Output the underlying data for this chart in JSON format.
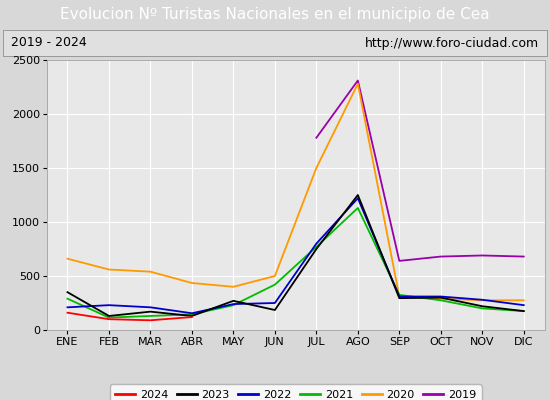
{
  "title": "Evolucion Nº Turistas Nacionales en el municipio de Cea",
  "subtitle_left": "2019 - 2024",
  "subtitle_right": "http://www.foro-ciudad.com",
  "months": [
    "ENE",
    "FEB",
    "MAR",
    "ABR",
    "MAY",
    "JUN",
    "JUL",
    "AGO",
    "SEP",
    "OCT",
    "NOV",
    "DIC"
  ],
  "ylim": [
    0,
    2500
  ],
  "yticks": [
    0,
    500,
    1000,
    1500,
    2000,
    2500
  ],
  "series": {
    "2024": {
      "color": "#ff0000",
      "values": [
        160,
        100,
        90,
        120,
        null,
        null,
        null,
        null,
        null,
        null,
        null,
        null
      ]
    },
    "2023": {
      "color": "#000000",
      "values": [
        350,
        130,
        170,
        130,
        270,
        185,
        750,
        1250,
        295,
        300,
        220,
        175
      ]
    },
    "2022": {
      "color": "#0000cc",
      "values": [
        210,
        230,
        210,
        155,
        240,
        250,
        800,
        1220,
        310,
        310,
        280,
        230
      ]
    },
    "2021": {
      "color": "#00bb00",
      "values": [
        290,
        115,
        130,
        145,
        230,
        420,
        770,
        1130,
        325,
        275,
        200,
        175
      ]
    },
    "2020": {
      "color": "#ff9900",
      "values": [
        660,
        560,
        540,
        435,
        400,
        500,
        1500,
        2280,
        310,
        290,
        275,
        275
      ]
    },
    "2019": {
      "color": "#9900aa",
      "values": [
        null,
        null,
        null,
        null,
        null,
        null,
        1780,
        2310,
        640,
        680,
        690,
        680
      ]
    }
  },
  "title_bg_color": "#4a7cc7",
  "title_text_color": "#ffffff",
  "plot_bg_color": "#e8e8e8",
  "chart_bg_color": "#dcdcdc",
  "outer_bg_color": "#d8d8d8",
  "grid_color": "#ffffff",
  "subtitle_bg_color": "#e0e0e0",
  "title_fontsize": 11,
  "axis_fontsize": 8,
  "legend_fontsize": 8
}
